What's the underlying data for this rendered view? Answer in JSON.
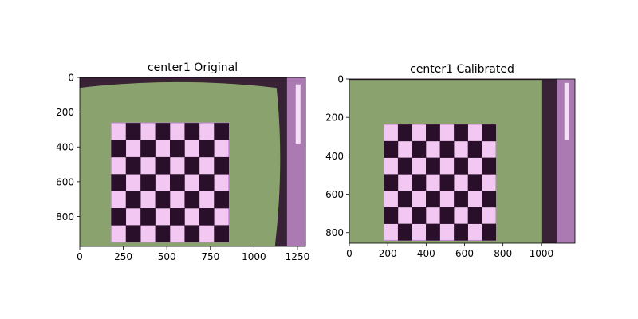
{
  "chart_data": [
    {
      "type": "image",
      "title": "center1 Original",
      "xlim": [
        0,
        1296
      ],
      "ylim": [
        972,
        0
      ],
      "xticks": [
        0,
        250,
        500,
        750,
        1000,
        1250
      ],
      "yticks": [
        0,
        200,
        400,
        600,
        800
      ],
      "board": {
        "cols": 8,
        "rows": 7,
        "x0": 180,
        "x1": 855,
        "y0": 262,
        "y1": 948
      },
      "colors": {
        "bezel": "#3a2236",
        "screen": "#8aa36e",
        "light": "#f2c8f2",
        "dark": "#2a0f2a",
        "edge": "#cc88dd"
      }
    },
    {
      "type": "image",
      "title": "center1 Calibrated",
      "xlim": [
        0,
        1175
      ],
      "ylim": [
        855,
        0
      ],
      "xticks": [
        0,
        200,
        400,
        600,
        800,
        1000
      ],
      "yticks": [
        0,
        200,
        400,
        600,
        800
      ],
      "board": {
        "cols": 8,
        "rows": 7,
        "x0": 180,
        "x1": 763,
        "y0": 237,
        "y1": 840
      },
      "colors": {
        "bezel": "#3a2236",
        "screen": "#8aa36e",
        "light": "#f2c8f2",
        "dark": "#2a0f2a",
        "edge": "#cc88dd"
      }
    }
  ]
}
